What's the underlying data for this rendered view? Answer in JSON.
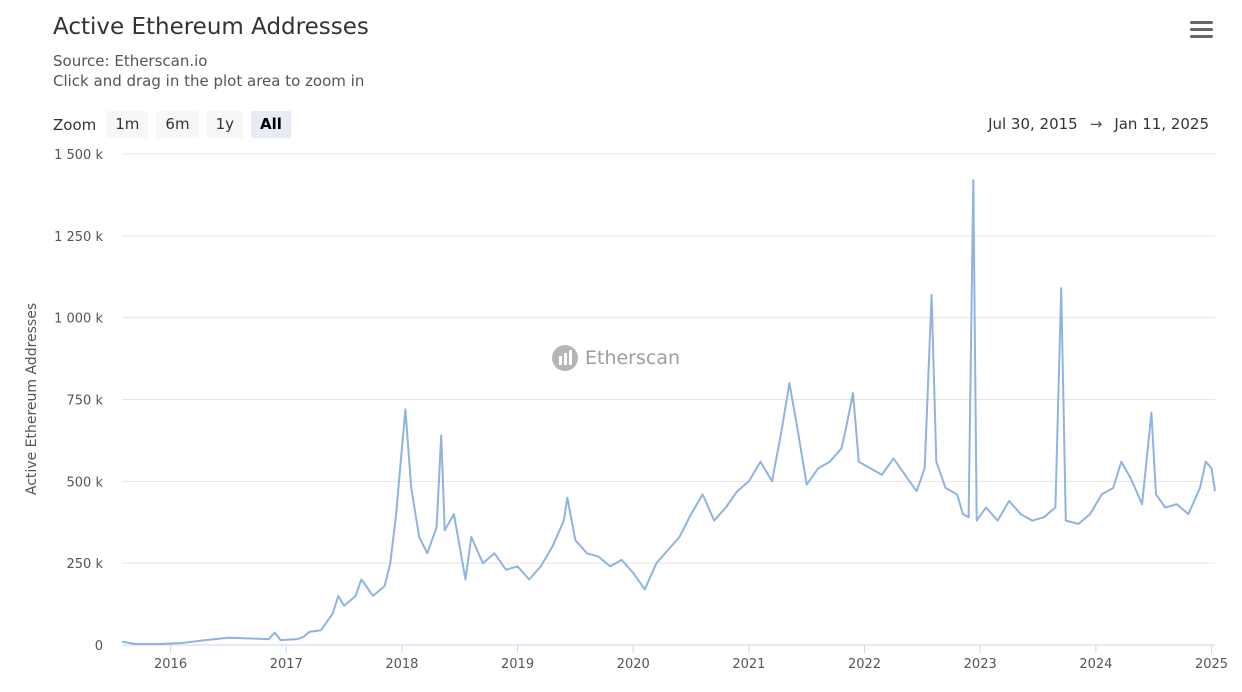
{
  "header": {
    "title": "Active Ethereum Addresses",
    "source": "Source: Etherscan.io",
    "hint": "Click and drag in the plot area to zoom in",
    "menu_icon": "hamburger-menu-icon"
  },
  "zoom": {
    "label": "Zoom",
    "options": [
      "1m",
      "6m",
      "1y",
      "All"
    ],
    "selected": "All"
  },
  "range": {
    "from": "Jul 30, 2015",
    "arrow": "→",
    "to": "Jan 11, 2025"
  },
  "watermark": {
    "text": "Etherscan",
    "icon": "etherscan-logo-icon"
  },
  "colors": {
    "line": "#8fb3e3",
    "grid": "#e6e6e6",
    "accent_selected": "#e6ebf5"
  },
  "chart_data": {
    "type": "line",
    "title": "Active Ethereum Addresses",
    "ylabel": "Active Ethereum Addresses",
    "xlabel": "",
    "xlim": [
      2015.58,
      2025.03
    ],
    "ylim": [
      0,
      1500000
    ],
    "grid": true,
    "legend": "none",
    "y_ticks": [
      {
        "value": 0,
        "label": "0"
      },
      {
        "value": 250000,
        "label": "250 k"
      },
      {
        "value": 500000,
        "label": "500 k"
      },
      {
        "value": 750000,
        "label": "750 k"
      },
      {
        "value": 1000000,
        "label": "1 000 k"
      },
      {
        "value": 1250000,
        "label": "1 250 k"
      },
      {
        "value": 1500000,
        "label": "1 500 k"
      }
    ],
    "x_ticks": [
      {
        "value": 2016,
        "label": "2016"
      },
      {
        "value": 2017,
        "label": "2017"
      },
      {
        "value": 2018,
        "label": "2018"
      },
      {
        "value": 2019,
        "label": "2019"
      },
      {
        "value": 2020,
        "label": "2020"
      },
      {
        "value": 2021,
        "label": "2021"
      },
      {
        "value": 2022,
        "label": "2022"
      },
      {
        "value": 2023,
        "label": "2023"
      },
      {
        "value": 2024,
        "label": "2024"
      },
      {
        "value": 2025,
        "label": "2025"
      }
    ],
    "series": [
      {
        "values": [
          [
            2015.58,
            10000
          ],
          [
            2015.7,
            3000
          ],
          [
            2015.9,
            3000
          ],
          [
            2016.1,
            6000
          ],
          [
            2016.3,
            15000
          ],
          [
            2016.5,
            22000
          ],
          [
            2016.7,
            20000
          ],
          [
            2016.85,
            18000
          ],
          [
            2016.9,
            38000
          ],
          [
            2016.95,
            15000
          ],
          [
            2017.1,
            18000
          ],
          [
            2017.15,
            25000
          ],
          [
            2017.2,
            40000
          ],
          [
            2017.3,
            45000
          ],
          [
            2017.4,
            95000
          ],
          [
            2017.45,
            150000
          ],
          [
            2017.5,
            120000
          ],
          [
            2017.6,
            150000
          ],
          [
            2017.65,
            200000
          ],
          [
            2017.75,
            150000
          ],
          [
            2017.85,
            180000
          ],
          [
            2017.9,
            250000
          ],
          [
            2017.95,
            400000
          ],
          [
            2018.0,
            600000
          ],
          [
            2018.03,
            720000
          ],
          [
            2018.08,
            480000
          ],
          [
            2018.15,
            330000
          ],
          [
            2018.22,
            280000
          ],
          [
            2018.3,
            360000
          ],
          [
            2018.34,
            640000
          ],
          [
            2018.37,
            350000
          ],
          [
            2018.45,
            400000
          ],
          [
            2018.5,
            300000
          ],
          [
            2018.55,
            200000
          ],
          [
            2018.6,
            330000
          ],
          [
            2018.7,
            250000
          ],
          [
            2018.8,
            280000
          ],
          [
            2018.9,
            230000
          ],
          [
            2019.0,
            240000
          ],
          [
            2019.1,
            200000
          ],
          [
            2019.2,
            240000
          ],
          [
            2019.3,
            300000
          ],
          [
            2019.4,
            380000
          ],
          [
            2019.43,
            450000
          ],
          [
            2019.5,
            320000
          ],
          [
            2019.6,
            280000
          ],
          [
            2019.7,
            270000
          ],
          [
            2019.8,
            240000
          ],
          [
            2019.9,
            260000
          ],
          [
            2020.0,
            220000
          ],
          [
            2020.1,
            170000
          ],
          [
            2020.2,
            250000
          ],
          [
            2020.3,
            290000
          ],
          [
            2020.4,
            330000
          ],
          [
            2020.5,
            400000
          ],
          [
            2020.6,
            460000
          ],
          [
            2020.7,
            380000
          ],
          [
            2020.8,
            420000
          ],
          [
            2020.9,
            470000
          ],
          [
            2021.0,
            500000
          ],
          [
            2021.1,
            560000
          ],
          [
            2021.2,
            500000
          ],
          [
            2021.28,
            650000
          ],
          [
            2021.35,
            800000
          ],
          [
            2021.42,
            660000
          ],
          [
            2021.5,
            490000
          ],
          [
            2021.6,
            540000
          ],
          [
            2021.7,
            560000
          ],
          [
            2021.8,
            600000
          ],
          [
            2021.85,
            680000
          ],
          [
            2021.9,
            770000
          ],
          [
            2021.95,
            560000
          ],
          [
            2022.05,
            540000
          ],
          [
            2022.15,
            520000
          ],
          [
            2022.25,
            570000
          ],
          [
            2022.35,
            520000
          ],
          [
            2022.45,
            470000
          ],
          [
            2022.52,
            540000
          ],
          [
            2022.58,
            1070000
          ],
          [
            2022.62,
            560000
          ],
          [
            2022.7,
            480000
          ],
          [
            2022.8,
            460000
          ],
          [
            2022.85,
            400000
          ],
          [
            2022.9,
            390000
          ],
          [
            2022.94,
            1420000
          ],
          [
            2022.97,
            380000
          ],
          [
            2023.05,
            420000
          ],
          [
            2023.15,
            380000
          ],
          [
            2023.25,
            440000
          ],
          [
            2023.35,
            400000
          ],
          [
            2023.45,
            380000
          ],
          [
            2023.55,
            390000
          ],
          [
            2023.65,
            420000
          ],
          [
            2023.7,
            1090000
          ],
          [
            2023.74,
            380000
          ],
          [
            2023.85,
            370000
          ],
          [
            2023.95,
            400000
          ],
          [
            2024.05,
            460000
          ],
          [
            2024.15,
            480000
          ],
          [
            2024.22,
            560000
          ],
          [
            2024.3,
            510000
          ],
          [
            2024.4,
            430000
          ],
          [
            2024.48,
            710000
          ],
          [
            2024.52,
            460000
          ],
          [
            2024.6,
            420000
          ],
          [
            2024.7,
            430000
          ],
          [
            2024.8,
            400000
          ],
          [
            2024.9,
            480000
          ],
          [
            2024.95,
            560000
          ],
          [
            2025.0,
            540000
          ],
          [
            2025.03,
            470000
          ]
        ]
      }
    ]
  }
}
